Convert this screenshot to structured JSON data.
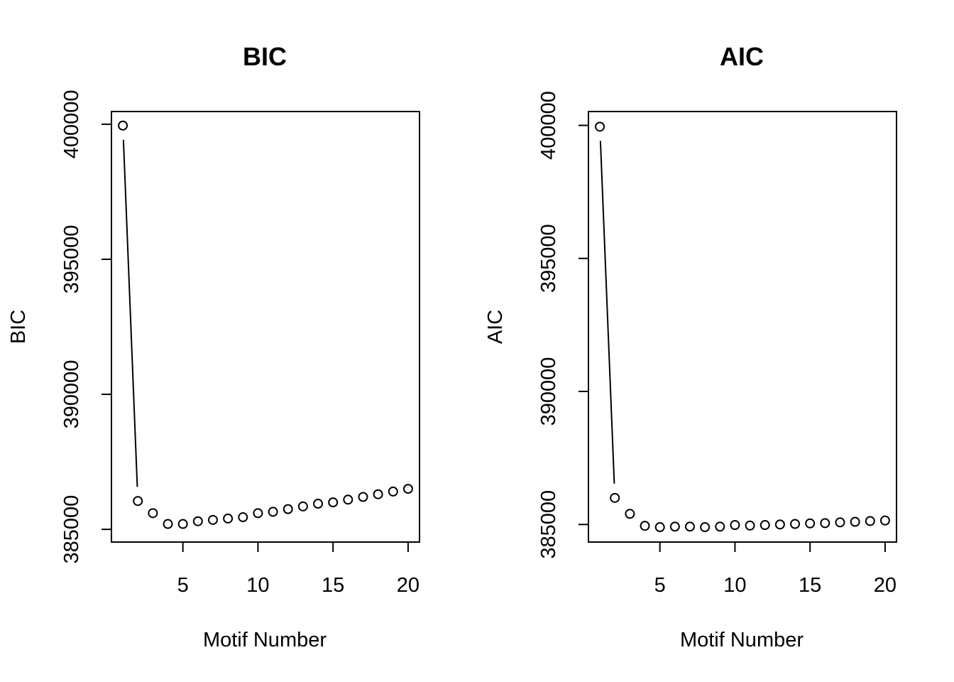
{
  "chart_data": [
    {
      "type": "line",
      "title": "BIC",
      "xlabel": "Motif Number",
      "ylabel": "BIC",
      "x": [
        1,
        2,
        3,
        4,
        5,
        6,
        7,
        8,
        9,
        10,
        11,
        12,
        13,
        14,
        15,
        16,
        17,
        18,
        19,
        20
      ],
      "values": [
        399950,
        386050,
        385600,
        385200,
        385200,
        385300,
        385350,
        385400,
        385450,
        385600,
        385650,
        385750,
        385850,
        385950,
        386000,
        386100,
        386200,
        386300,
        386400,
        386500
      ],
      "xticks": [
        5,
        10,
        15,
        20
      ],
      "yticks": [
        385000,
        390000,
        395000,
        400000
      ],
      "xticklabels": [
        "5",
        "10",
        "15",
        "20"
      ],
      "yticklabels": [
        "385000",
        "390000",
        "395000",
        "400000"
      ],
      "xlim": [
        1,
        20
      ],
      "ylim": [
        384530,
        400470
      ],
      "grid": false,
      "style": "points-and-lines"
    },
    {
      "type": "line",
      "title": "AIC",
      "xlabel": "Motif Number",
      "ylabel": "AIC",
      "x": [
        1,
        2,
        3,
        4,
        5,
        6,
        7,
        8,
        9,
        10,
        11,
        12,
        13,
        14,
        15,
        16,
        17,
        18,
        19,
        20
      ],
      "values": [
        399950,
        386000,
        385400,
        384950,
        384900,
        384920,
        384920,
        384900,
        384920,
        384980,
        384960,
        384980,
        385000,
        385020,
        385040,
        385050,
        385080,
        385100,
        385130,
        385150
      ],
      "xticks": [
        5,
        10,
        15,
        20
      ],
      "yticks": [
        385000,
        390000,
        395000,
        400000
      ],
      "xticklabels": [
        "5",
        "10",
        "15",
        "20"
      ],
      "yticklabels": [
        "385000",
        "390000",
        "395000",
        "400000"
      ],
      "xlim": [
        1,
        20
      ],
      "ylim": [
        384340,
        400520
      ],
      "grid": false,
      "style": "points-and-lines"
    }
  ]
}
